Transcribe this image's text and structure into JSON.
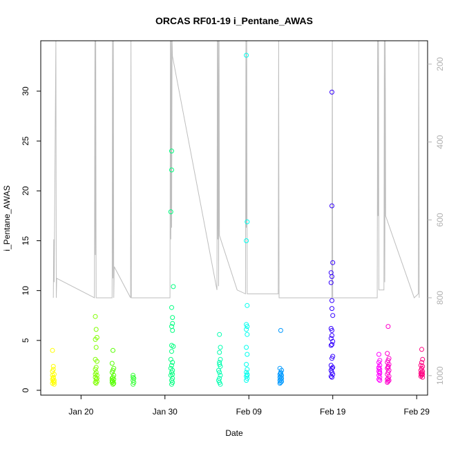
{
  "chart_data": {
    "type": "scatter",
    "title": "ORCAS RF01-19 i_Pentane_AWAS",
    "xlabel": "Date",
    "ylabel": "i_Pentane_AWAS",
    "ylim": [
      0,
      34.5
    ],
    "yticks": [
      0,
      5,
      10,
      15,
      20,
      25,
      30
    ],
    "xlim": [
      15.2,
      61.3
    ],
    "xticks": [
      {
        "label": "Jan 20",
        "day": 20
      },
      {
        "label": "Jan 30",
        "day": 30
      },
      {
        "label": "Feb 09",
        "day": 40
      },
      {
        "label": "Feb 19",
        "day": 50
      },
      {
        "label": "Feb 29",
        "day": 60
      }
    ],
    "right_axis": {
      "range": [
        1050,
        140
      ],
      "ticks": [
        200,
        400,
        600,
        800,
        1000
      ],
      "color": "#b0b0b0"
    },
    "series": [
      {
        "color": "#ffff00",
        "points": [
          [
            16.6,
            4.0
          ],
          [
            16.7,
            2.4
          ],
          [
            16.6,
            1.9
          ],
          [
            16.8,
            1.6
          ],
          [
            16.7,
            1.3
          ],
          [
            16.6,
            1.1
          ],
          [
            16.8,
            1.0
          ],
          [
            16.7,
            0.9
          ],
          [
            16.8,
            0.8
          ],
          [
            16.6,
            0.7
          ],
          [
            16.7,
            1.2
          ],
          [
            16.8,
            0.6
          ],
          [
            16.7,
            2.1
          ],
          [
            16.6,
            1.5
          ]
        ]
      },
      {
        "color": "#80ff00",
        "points": [
          [
            21.7,
            7.4
          ],
          [
            21.8,
            6.1
          ],
          [
            21.9,
            5.3
          ],
          [
            21.7,
            5.1
          ],
          [
            21.8,
            4.3
          ],
          [
            21.7,
            3.1
          ],
          [
            21.9,
            2.9
          ],
          [
            21.8,
            2.3
          ],
          [
            21.7,
            2.1
          ],
          [
            21.8,
            1.8
          ],
          [
            21.9,
            1.5
          ],
          [
            21.7,
            1.3
          ],
          [
            21.8,
            1.1
          ],
          [
            21.9,
            0.9
          ],
          [
            21.7,
            0.8
          ],
          [
            21.8,
            0.7
          ],
          [
            21.7,
            1.6
          ],
          [
            21.9,
            1.2
          ]
        ]
      },
      {
        "color": "#55ff00",
        "points": [
          [
            23.8,
            4.0
          ],
          [
            23.7,
            2.7
          ],
          [
            23.9,
            2.2
          ],
          [
            23.8,
            2.0
          ],
          [
            23.7,
            1.8
          ],
          [
            23.9,
            1.5
          ],
          [
            23.8,
            1.3
          ],
          [
            23.7,
            1.2
          ],
          [
            23.9,
            1.1
          ],
          [
            23.8,
            0.9
          ],
          [
            23.7,
            0.8
          ],
          [
            23.9,
            0.7
          ],
          [
            23.8,
            0.6
          ],
          [
            23.7,
            1.0
          ]
        ]
      },
      {
        "color": "#33ff33",
        "points": [
          [
            26.2,
            1.5
          ],
          [
            26.2,
            1.3
          ],
          [
            26.3,
            1.2
          ],
          [
            26.2,
            1.0
          ],
          [
            26.3,
            0.8
          ],
          [
            26.2,
            0.6
          ]
        ]
      },
      {
        "color": "#00ff80",
        "points": [
          [
            30.8,
            24.0
          ],
          [
            30.8,
            22.1
          ],
          [
            30.7,
            17.9
          ],
          [
            31.0,
            10.4
          ],
          [
            30.8,
            8.3
          ],
          [
            30.9,
            7.3
          ],
          [
            30.9,
            6.7
          ],
          [
            30.8,
            6.4
          ],
          [
            30.9,
            6.0
          ],
          [
            30.8,
            4.5
          ],
          [
            31.0,
            4.4
          ],
          [
            30.8,
            3.9
          ],
          [
            30.7,
            3.1
          ],
          [
            30.9,
            2.8
          ],
          [
            30.8,
            2.5
          ],
          [
            30.9,
            2.0
          ],
          [
            30.8,
            1.8
          ],
          [
            30.7,
            1.5
          ],
          [
            30.9,
            1.2
          ],
          [
            30.8,
            1.0
          ],
          [
            30.9,
            0.8
          ],
          [
            30.8,
            0.6
          ],
          [
            30.7,
            2.2
          ],
          [
            30.9,
            1.6
          ]
        ]
      },
      {
        "color": "#00ffb0",
        "points": [
          [
            36.5,
            5.6
          ],
          [
            36.6,
            4.3
          ],
          [
            36.5,
            3.8
          ],
          [
            36.6,
            3.1
          ],
          [
            36.5,
            2.8
          ],
          [
            36.6,
            2.4
          ],
          [
            36.4,
            2.0
          ],
          [
            36.5,
            1.8
          ],
          [
            36.6,
            1.5
          ],
          [
            36.5,
            1.2
          ],
          [
            36.4,
            1.0
          ],
          [
            36.5,
            0.8
          ],
          [
            36.6,
            0.6
          ],
          [
            36.5,
            2.6
          ]
        ]
      },
      {
        "color": "#00ffee",
        "points": [
          [
            39.7,
            33.6
          ],
          [
            39.8,
            16.9
          ],
          [
            39.7,
            15.0
          ],
          [
            39.8,
            8.5
          ],
          [
            39.7,
            6.6
          ],
          [
            39.8,
            6.4
          ],
          [
            39.7,
            6.1
          ],
          [
            39.8,
            5.6
          ],
          [
            39.7,
            4.3
          ],
          [
            39.8,
            3.6
          ],
          [
            39.7,
            2.6
          ],
          [
            39.8,
            2.1
          ],
          [
            39.7,
            1.8
          ],
          [
            39.8,
            1.6
          ],
          [
            39.7,
            1.4
          ],
          [
            39.8,
            1.2
          ],
          [
            39.7,
            1.0
          ],
          [
            39.8,
            1.5
          ]
        ]
      },
      {
        "color": "#0099ff",
        "points": [
          [
            43.8,
            6.0
          ],
          [
            43.7,
            2.2
          ],
          [
            43.9,
            2.0
          ],
          [
            43.8,
            1.8
          ],
          [
            43.7,
            1.6
          ],
          [
            43.9,
            1.5
          ],
          [
            43.8,
            1.4
          ],
          [
            43.7,
            1.3
          ],
          [
            43.9,
            1.2
          ],
          [
            43.8,
            1.1
          ],
          [
            43.7,
            1.0
          ],
          [
            43.9,
            0.9
          ],
          [
            43.8,
            0.8
          ],
          [
            43.7,
            0.7
          ],
          [
            43.8,
            1.7
          ]
        ]
      },
      {
        "color": "#3300ff",
        "points": [
          [
            49.9,
            29.9
          ],
          [
            49.9,
            18.5
          ],
          [
            50.0,
            12.8
          ],
          [
            49.8,
            11.8
          ],
          [
            49.9,
            11.4
          ],
          [
            49.8,
            10.8
          ],
          [
            49.9,
            9.0
          ],
          [
            49.9,
            8.2
          ],
          [
            50.0,
            7.5
          ],
          [
            49.8,
            6.2
          ],
          [
            49.9,
            6.0
          ],
          [
            49.9,
            5.5
          ],
          [
            49.8,
            5.2
          ],
          [
            50.0,
            4.9
          ],
          [
            49.9,
            4.6
          ],
          [
            49.8,
            4.5
          ],
          [
            50.0,
            3.4
          ],
          [
            49.9,
            3.2
          ],
          [
            49.8,
            2.5
          ],
          [
            50.0,
            2.3
          ],
          [
            49.9,
            2.2
          ],
          [
            49.8,
            2.0
          ],
          [
            49.9,
            1.8
          ],
          [
            50.0,
            1.6
          ],
          [
            49.8,
            1.4
          ],
          [
            49.9,
            1.3
          ]
        ]
      },
      {
        "color": "#ff00ff",
        "points": [
          [
            55.5,
            3.6
          ],
          [
            55.6,
            3.0
          ],
          [
            55.5,
            2.8
          ],
          [
            55.6,
            2.5
          ],
          [
            55.5,
            2.3
          ],
          [
            55.6,
            2.1
          ],
          [
            55.5,
            1.9
          ],
          [
            55.6,
            1.7
          ],
          [
            55.5,
            1.5
          ],
          [
            55.6,
            1.3
          ],
          [
            55.5,
            1.1
          ],
          [
            55.6,
            1.0
          ],
          [
            55.5,
            2.2
          ],
          [
            55.6,
            1.8
          ]
        ]
      },
      {
        "color": "#ff00cc",
        "points": [
          [
            56.6,
            6.4
          ],
          [
            56.5,
            3.7
          ],
          [
            56.7,
            3.2
          ],
          [
            56.6,
            3.0
          ],
          [
            56.5,
            2.8
          ],
          [
            56.7,
            2.6
          ],
          [
            56.6,
            2.4
          ],
          [
            56.5,
            2.2
          ],
          [
            56.7,
            2.0
          ],
          [
            56.6,
            1.8
          ],
          [
            56.5,
            1.6
          ],
          [
            56.7,
            1.4
          ],
          [
            56.6,
            1.2
          ],
          [
            56.5,
            1.1
          ],
          [
            56.7,
            1.0
          ],
          [
            56.6,
            0.9
          ],
          [
            56.5,
            0.8
          ],
          [
            56.6,
            2.3
          ]
        ]
      },
      {
        "color": "#ff0080",
        "points": [
          [
            60.6,
            4.1
          ],
          [
            60.7,
            3.1
          ],
          [
            60.6,
            2.8
          ],
          [
            60.5,
            2.5
          ],
          [
            60.7,
            2.4
          ],
          [
            60.6,
            2.2
          ],
          [
            60.5,
            2.0
          ],
          [
            60.7,
            1.9
          ],
          [
            60.6,
            1.8
          ],
          [
            60.5,
            1.7
          ],
          [
            60.7,
            1.6
          ],
          [
            60.6,
            1.5
          ],
          [
            60.5,
            1.4
          ],
          [
            60.7,
            1.3
          ],
          [
            60.6,
            1.6
          ]
        ]
      }
    ],
    "altitude_track": [
      [
        16.7,
        800
      ],
      [
        16.75,
        650
      ],
      [
        16.8,
        760
      ],
      [
        17.0,
        140
      ],
      [
        17.05,
        800
      ],
      [
        17.1,
        750
      ],
      [
        21.6,
        800
      ],
      [
        21.65,
        140
      ],
      [
        21.7,
        690
      ],
      [
        21.75,
        140
      ],
      [
        21.8,
        800
      ],
      [
        22.0,
        800
      ],
      [
        23.7,
        800
      ],
      [
        23.75,
        140
      ],
      [
        23.8,
        750
      ],
      [
        23.85,
        140
      ],
      [
        23.9,
        800
      ],
      [
        23.95,
        720
      ],
      [
        25.9,
        800
      ],
      [
        25.95,
        140
      ],
      [
        26.0,
        800
      ],
      [
        30.6,
        800
      ],
      [
        30.65,
        140
      ],
      [
        30.7,
        650
      ],
      [
        30.75,
        140
      ],
      [
        30.8,
        620
      ],
      [
        30.85,
        140
      ],
      [
        30.9,
        180
      ],
      [
        36.2,
        780
      ],
      [
        36.25,
        140
      ],
      [
        36.3,
        650
      ],
      [
        36.35,
        140
      ],
      [
        36.4,
        770
      ],
      [
        36.45,
        140
      ],
      [
        36.5,
        640
      ],
      [
        38.6,
        780
      ],
      [
        39.6,
        790
      ],
      [
        39.65,
        140
      ],
      [
        39.7,
        620
      ],
      [
        39.75,
        140
      ],
      [
        39.8,
        790
      ],
      [
        43.5,
        790
      ],
      [
        43.55,
        140
      ],
      [
        43.6,
        800
      ],
      [
        49.9,
        800
      ],
      [
        49.95,
        140
      ],
      [
        50.0,
        800
      ],
      [
        54.8,
        800
      ],
      [
        55.3,
        800
      ],
      [
        55.35,
        140
      ],
      [
        55.4,
        590
      ],
      [
        55.45,
        140
      ],
      [
        55.5,
        780
      ],
      [
        56.1,
        780
      ],
      [
        56.15,
        140
      ],
      [
        56.2,
        760
      ],
      [
        56.25,
        140
      ],
      [
        56.3,
        590
      ],
      [
        59.7,
        800
      ],
      [
        60.2,
        790
      ],
      [
        60.25,
        140
      ],
      [
        60.3,
        800
      ]
    ]
  }
}
